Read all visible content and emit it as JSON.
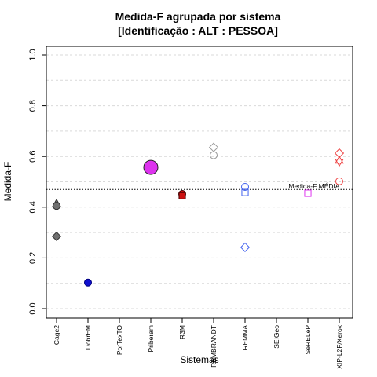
{
  "chart_data": {
    "type": "scatter",
    "title": "Medida-F agrupada por sistema",
    "subtitle": "[Identificação : ALT : PESSOA]",
    "xlabel": "Sistemas",
    "ylabel": "Medida-F",
    "categories": [
      "Cage2",
      "DobrEM",
      "PorTexTO",
      "Priberam",
      "R3M",
      "REMBRANDT",
      "REMMA",
      "SEIGeo",
      "SeRELeP",
      "XIP-L2F/Xerox"
    ],
    "ylim": [
      0,
      1
    ],
    "yticks": [
      "0.0",
      "0.2",
      "0.4",
      "0.6",
      "0.8",
      "1.0"
    ],
    "grid": true,
    "reference_line": {
      "label": "Medida-F MÉDIA",
      "value": 0.47
    },
    "points": [
      {
        "category": "Cage2",
        "value": 0.415,
        "shape": "triangle",
        "color": "#707070",
        "stroke": "#333333",
        "size": 1
      },
      {
        "category": "Cage2",
        "value": 0.405,
        "shape": "circle",
        "color": "#707070",
        "stroke": "#333333",
        "size": 1
      },
      {
        "category": "Cage2",
        "value": 0.285,
        "shape": "diamond",
        "color": "#707070",
        "stroke": "#333333",
        "size": 1
      },
      {
        "category": "DobrEM",
        "value": 0.103,
        "shape": "circle",
        "color": "#1010d0",
        "stroke": "#000080",
        "size": 1
      },
      {
        "category": "Priberam",
        "value": 0.557,
        "shape": "circle",
        "color": "#dd33ee",
        "stroke": "#222222",
        "size": 2
      },
      {
        "category": "R3M",
        "value": 0.452,
        "shape": "circle",
        "color": "#cc1111",
        "stroke": "#440000",
        "size": 1
      },
      {
        "category": "R3M",
        "value": 0.445,
        "shape": "square",
        "color": "#cc1111",
        "stroke": "#440000",
        "size": 1
      },
      {
        "category": "REMBRANDT",
        "value": 0.636,
        "shape": "diamond-open",
        "color": "#999999",
        "stroke": "#999999",
        "size": 1
      },
      {
        "category": "REMBRANDT",
        "value": 0.605,
        "shape": "circle-open",
        "color": "#999999",
        "stroke": "#999999",
        "size": 1
      },
      {
        "category": "REMMA",
        "value": 0.48,
        "shape": "circle-open",
        "color": "#4060ee",
        "stroke": "#4060ee",
        "size": 1
      },
      {
        "category": "REMMA",
        "value": 0.458,
        "shape": "square-open",
        "color": "#4060ee",
        "stroke": "#4060ee",
        "size": 1
      },
      {
        "category": "REMMA",
        "value": 0.242,
        "shape": "diamond-open",
        "color": "#4060ee",
        "stroke": "#4060ee",
        "size": 1
      },
      {
        "category": "SeRELeP",
        "value": 0.455,
        "shape": "square-open",
        "color": "#dd33ee",
        "stroke": "#dd33ee",
        "size": 1
      },
      {
        "category": "XIP-L2F/Xerox",
        "value": 0.613,
        "shape": "diamond-open",
        "color": "#ee4444",
        "stroke": "#ee4444",
        "size": 1
      },
      {
        "category": "XIP-L2F/Xerox",
        "value": 0.585,
        "shape": "triangle-open",
        "color": "#ee4444",
        "stroke": "#ee4444",
        "size": 1
      },
      {
        "category": "XIP-L2F/Xerox",
        "value": 0.578,
        "shape": "triangle-down-open",
        "color": "#ee4444",
        "stroke": "#ee4444",
        "size": 1
      },
      {
        "category": "XIP-L2F/Xerox",
        "value": 0.502,
        "shape": "circle-open",
        "color": "#ee4444",
        "stroke": "#ee4444",
        "size": 1
      }
    ]
  }
}
